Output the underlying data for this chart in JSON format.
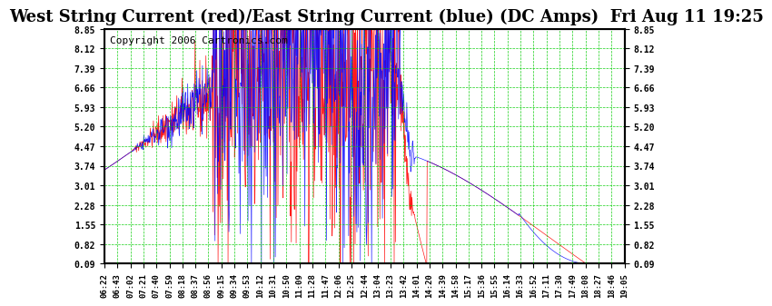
{
  "title": "West String Current (red)/East String Current (blue) (DC Amps)  Fri Aug 11 19:25",
  "copyright": "Copyright 2006 Cartronics.com",
  "yticks": [
    0.09,
    0.82,
    1.55,
    2.28,
    3.01,
    3.74,
    4.47,
    5.2,
    5.93,
    6.66,
    7.39,
    8.12,
    8.85
  ],
  "ylim": [
    0.09,
    8.85
  ],
  "xtick_labels": [
    "06:22",
    "06:43",
    "07:02",
    "07:21",
    "07:40",
    "07:59",
    "08:18",
    "08:37",
    "08:56",
    "09:15",
    "09:34",
    "09:53",
    "10:12",
    "10:31",
    "10:50",
    "11:09",
    "11:28",
    "11:47",
    "12:06",
    "12:25",
    "12:44",
    "13:04",
    "13:23",
    "13:42",
    "14:01",
    "14:20",
    "14:39",
    "14:58",
    "15:17",
    "15:36",
    "15:55",
    "16:14",
    "16:33",
    "16:52",
    "17:11",
    "17:30",
    "17:49",
    "18:08",
    "18:27",
    "18:46",
    "19:05"
  ],
  "bg_color": "#ffffff",
  "grid_color": "#00cc00",
  "red_color": "#ff0000",
  "blue_color": "#0000ff",
  "title_bg": "#ffffff",
  "border_color": "#000000",
  "copyright_color": "#000000",
  "title_fontsize": 13,
  "copyright_fontsize": 8
}
